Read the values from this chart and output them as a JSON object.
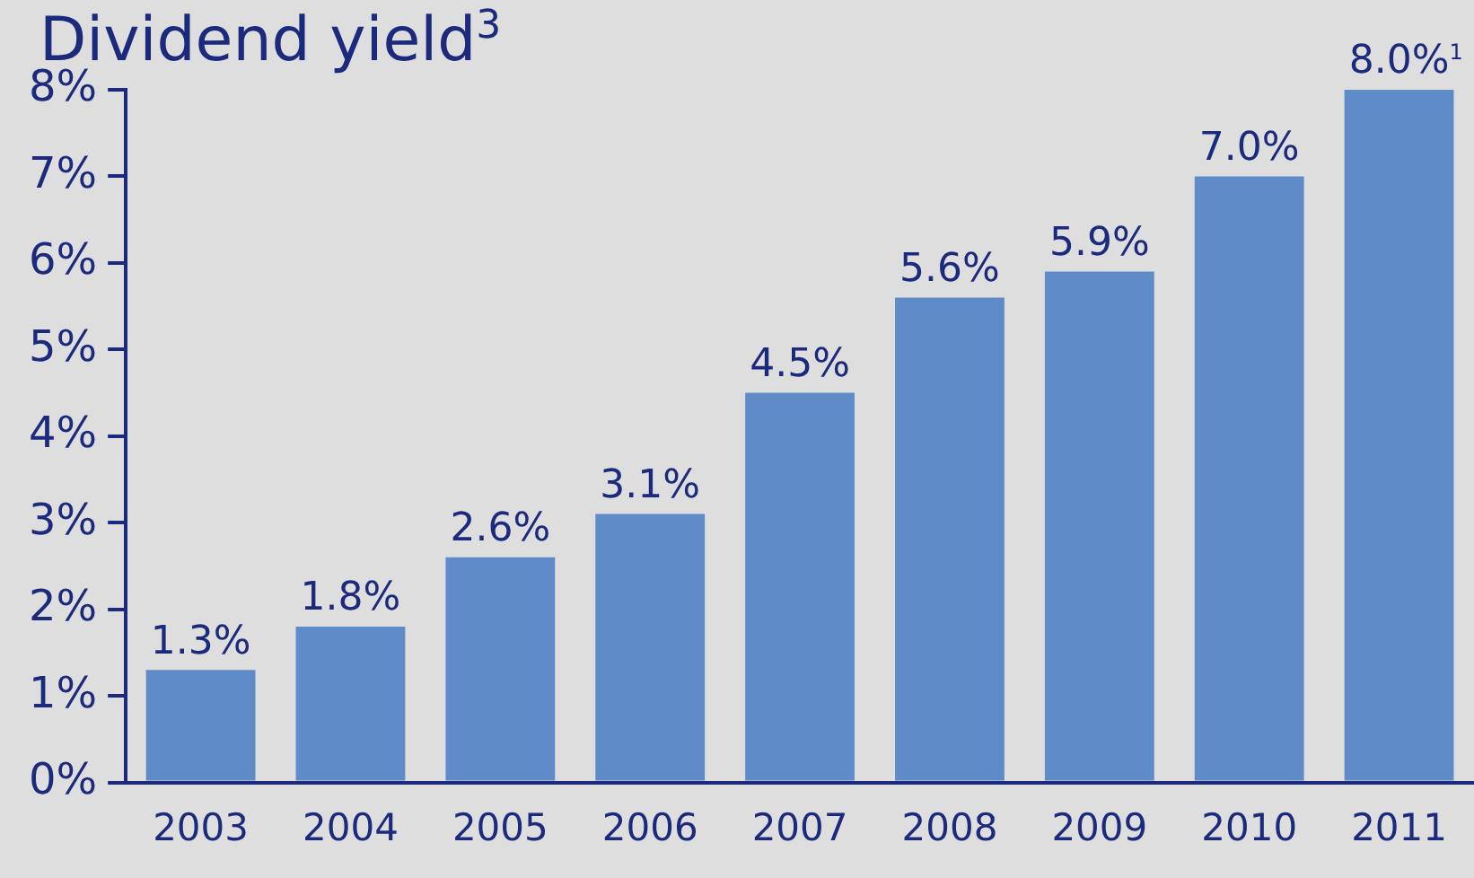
{
  "chart_data": {
    "type": "bar",
    "title": "Dividend yield$^{3}$",
    "categories": [
      "2003",
      "2004",
      "2005",
      "2006",
      "2007",
      "2008",
      "2009",
      "2010",
      "2011"
    ],
    "values": [
      1.3,
      1.8,
      2.6,
      3.1,
      4.5,
      5.6,
      5.9,
      7.0,
      8.0
    ],
    "value_labels": [
      "1.3%",
      "1.8%",
      "2.6%",
      "3.1%",
      "4.5%",
      "5.6%",
      "5.9%",
      "7.0%",
      "8.0%$^{1}$"
    ],
    "color": "#5f8cc8",
    "ylim": [
      0,
      8
    ],
    "yticks": [
      {
        "value": 0,
        "label": "0%"
      },
      {
        "value": 1,
        "label": "1%"
      },
      {
        "value": 2,
        "label": "2%"
      },
      {
        "value": 3,
        "label": "3%"
      },
      {
        "value": 4,
        "label": "4%"
      },
      {
        "value": 5,
        "label": "5%"
      },
      {
        "value": 6,
        "label": "6%"
      },
      {
        "value": 7,
        "label": "7%"
      },
      {
        "value": 8,
        "label": "8%"
      }
    ],
    "grid": false,
    "legend": false
  }
}
